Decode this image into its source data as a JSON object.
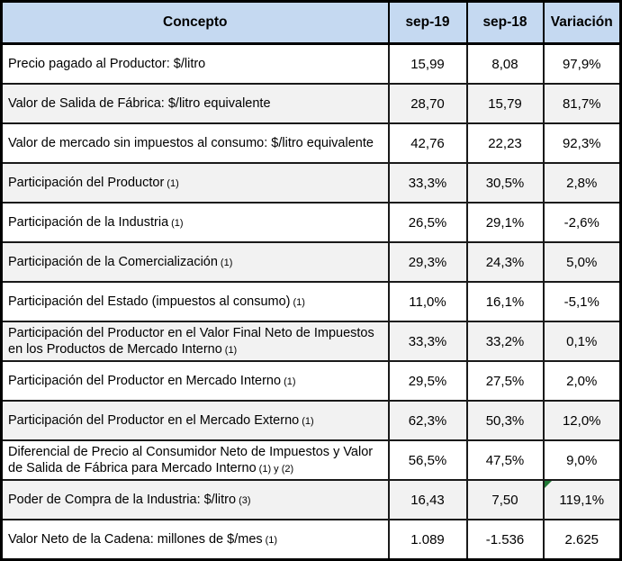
{
  "header": {
    "columns": [
      "Concepto",
      "sep-19",
      "sep-18",
      "Variación"
    ]
  },
  "table": {
    "rows": [
      {
        "concepto": "Precio pagado al Productor: $/litro",
        "note": "",
        "sep19": "15,99",
        "sep18": "8,08",
        "variacion": "97,9%",
        "flag": false
      },
      {
        "concepto": "Valor de Salida de Fábrica: $/litro equivalente",
        "note": "",
        "sep19": "28,70",
        "sep18": "15,79",
        "variacion": "81,7%",
        "flag": false
      },
      {
        "concepto": "Valor de mercado sin impuestos al consumo: $/litro equivalente",
        "note": "",
        "sep19": "42,76",
        "sep18": "22,23",
        "variacion": "92,3%",
        "flag": false
      },
      {
        "concepto": "Participación del Productor",
        "note": "(1)",
        "sep19": "33,3%",
        "sep18": "30,5%",
        "variacion": "2,8%",
        "flag": false
      },
      {
        "concepto": "Participación de la Industria",
        "note": "(1)",
        "sep19": "26,5%",
        "sep18": "29,1%",
        "variacion": "-2,6%",
        "flag": false
      },
      {
        "concepto": "Participación de la Comercialización",
        "note": "(1)",
        "sep19": "29,3%",
        "sep18": "24,3%",
        "variacion": "5,0%",
        "flag": false
      },
      {
        "concepto": "Participación del Estado (impuestos al consumo)",
        "note": "(1)",
        "sep19": "11,0%",
        "sep18": "16,1%",
        "variacion": "-5,1%",
        "flag": false
      },
      {
        "concepto": "Participación del Productor en el Valor Final Neto de Impuestos en los Productos de Mercado Interno",
        "note": "(1)",
        "sep19": "33,3%",
        "sep18": "33,2%",
        "variacion": "0,1%",
        "flag": false
      },
      {
        "concepto": "Participación del Productor en Mercado Interno",
        "note": "(1)",
        "sep19": "29,5%",
        "sep18": "27,5%",
        "variacion": "2,0%",
        "flag": false
      },
      {
        "concepto": "Participación del Productor en el Mercado Externo",
        "note": "(1)",
        "sep19": "62,3%",
        "sep18": "50,3%",
        "variacion": "12,0%",
        "flag": false
      },
      {
        "concepto": "Diferencial de Precio al Consumidor Neto de Impuestos y Valor de Salida de Fábrica para Mercado Interno",
        "note": "(1) y (2)",
        "sep19": "56,5%",
        "sep18": "47,5%",
        "variacion": "9,0%",
        "flag": false
      },
      {
        "concepto": "Poder de Compra de la Industria: $/litro",
        "note": "(3)",
        "sep19": "16,43",
        "sep18": "7,50",
        "variacion": "119,1%",
        "flag": true
      },
      {
        "concepto": "Valor Neto de la Cadena: millones de $/mes",
        "note": "(1)",
        "sep19": "1.089",
        "sep18": "-1.536",
        "variacion": "2.625",
        "flag": false
      }
    ]
  },
  "colors": {
    "header_bg": "#C5D9F1",
    "row_alt_bg": "#F2F2F2",
    "border": "#000000",
    "flag_triangle": "#217A36"
  }
}
